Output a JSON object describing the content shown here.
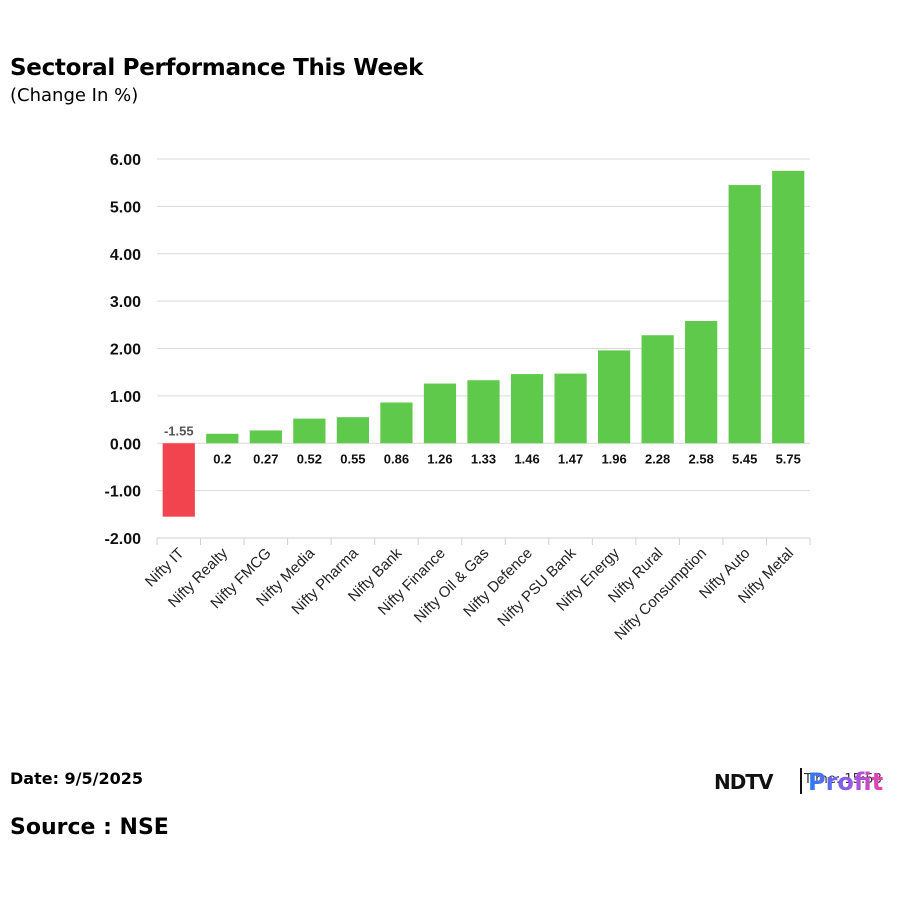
{
  "header": {
    "title": "Sectoral Performance This Week",
    "subtitle": "(Change In %)"
  },
  "footer": {
    "date": "Date: 9/5/2025",
    "source": "Source : NSE",
    "logo_ndtv": "NDTV",
    "logo_profit": "Profit",
    "time_label": "Time: 15:58"
  },
  "colors": {
    "positive": "#5ec94a",
    "negative": "#f2444f",
    "grid": "#d9d9d9"
  },
  "chart_data": {
    "type": "bar",
    "title": "Sectoral Performance This Week",
    "subtitle": "(Change In %)",
    "xlabel": "",
    "ylabel": "Change In %",
    "ylim": [
      -2,
      6
    ],
    "yticks": [
      6,
      5,
      4,
      3,
      2,
      1,
      0,
      -1,
      -2
    ],
    "ytick_labels": [
      "6.00",
      "5.00",
      "4.00",
      "3.00",
      "2.00",
      "1.00",
      "0.00",
      "-1.00",
      "-2.00"
    ],
    "grid": true,
    "legend": "none",
    "categories": [
      "Nifty IT",
      "Nifty Realty",
      "Nifty FMCG",
      "Nifty Media",
      "Nifty Pharma",
      "Nifty Bank",
      "Nifty Finance",
      "Nifty Oil & Gas",
      "Nifty Defence",
      "Nifty PSU Bank",
      "Nifty Energy",
      "Nifty Rural",
      "Nifty Consumption",
      "Nifty Auto",
      "Nifty Metal"
    ],
    "values": [
      -1.55,
      0.2,
      0.27,
      0.52,
      0.55,
      0.86,
      1.26,
      1.33,
      1.46,
      1.47,
      1.96,
      2.28,
      2.58,
      5.45,
      5.75
    ],
    "data_labels": [
      "-1.55",
      "0.2",
      "0.27",
      "0.52",
      "0.55",
      "0.86",
      "1.26",
      "1.33",
      "1.46",
      "1.47",
      "1.96",
      "2.28",
      "2.58",
      "5.45",
      "5.75"
    ]
  }
}
